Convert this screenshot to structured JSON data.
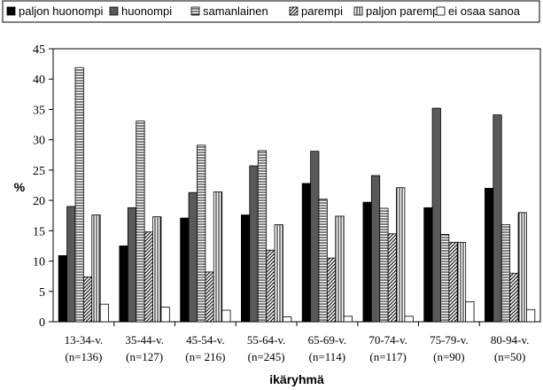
{
  "chart_data": {
    "type": "bar",
    "title": "",
    "xlabel": "ikäryhmä",
    "ylabel": "%",
    "ylim": [
      0,
      45
    ],
    "yticks": [
      "0",
      "5",
      "10",
      "15",
      "20",
      "25",
      "30",
      "35",
      "40",
      "45"
    ],
    "legend_position": "top",
    "categories": [
      {
        "label": "13-34-v.",
        "n": "(n=136)"
      },
      {
        "label": "35-44-v.",
        "n": "(n=127)"
      },
      {
        "label": "45-54-v.",
        "n": "(n= 216)"
      },
      {
        "label": "55-64-v.",
        "n": "(n=245)"
      },
      {
        "label": "65-69-v.",
        "n": "(n=114)"
      },
      {
        "label": "70-74-v.",
        "n": "(n=117)"
      },
      {
        "label": "75-79-v.",
        "n": "(n=90)"
      },
      {
        "label": "80-94-v.",
        "n": "(n=50)"
      }
    ],
    "series": [
      {
        "name": "paljon huonompi",
        "fill": "#000000",
        "pattern": "solid",
        "values": [
          10.9,
          12.5,
          17.1,
          17.6,
          22.8,
          19.7,
          18.8,
          22.0
        ]
      },
      {
        "name": "huonompi",
        "fill": "#595959",
        "pattern": "solid",
        "values": [
          19.0,
          18.8,
          21.3,
          25.7,
          28.1,
          24.1,
          35.2,
          34.1
        ]
      },
      {
        "name": "samanlainen",
        "fill": "#ffffff",
        "pattern": "horizontal",
        "values": [
          41.9,
          33.1,
          29.1,
          28.2,
          20.2,
          18.7,
          14.4,
          16.0
        ]
      },
      {
        "name": "parempi",
        "fill": "#ffffff",
        "pattern": "diagonal",
        "values": [
          7.4,
          14.8,
          8.2,
          11.8,
          10.5,
          14.5,
          13.1,
          8.0
        ]
      },
      {
        "name": "paljon parempi",
        "fill": "#ffffff",
        "pattern": "vertical",
        "values": [
          17.6,
          17.3,
          21.4,
          16.0,
          17.4,
          22.1,
          13.1,
          18.0
        ]
      },
      {
        "name": "ei osaa sanoa",
        "fill": "#ffffff",
        "pattern": "none",
        "values": [
          2.9,
          2.4,
          1.9,
          0.8,
          0.9,
          0.9,
          3.3,
          2.0
        ]
      }
    ]
  }
}
